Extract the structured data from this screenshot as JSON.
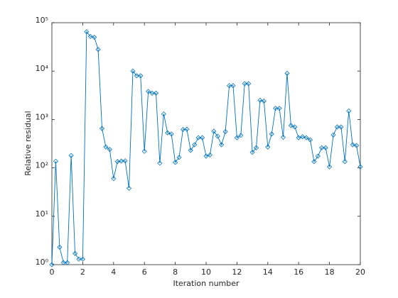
{
  "chart_data": {
    "type": "line",
    "xlabel": "Iteration number",
    "ylabel": "Relative residual",
    "x": [
      0,
      0.25,
      0.5,
      0.75,
      1,
      1.25,
      1.5,
      1.75,
      2,
      2.25,
      2.5,
      2.75,
      3,
      3.25,
      3.5,
      3.75,
      4,
      4.25,
      4.5,
      4.75,
      5,
      5.25,
      5.5,
      5.75,
      6,
      6.25,
      6.5,
      6.75,
      7,
      7.25,
      7.5,
      7.75,
      8,
      8.25,
      8.5,
      8.75,
      9,
      9.25,
      9.5,
      9.75,
      10,
      10.25,
      10.5,
      10.75,
      11,
      11.25,
      11.5,
      11.75,
      12,
      12.25,
      12.5,
      12.75,
      13,
      13.25,
      13.5,
      13.75,
      14,
      14.25,
      14.5,
      14.75,
      15,
      15.25,
      15.5,
      15.75,
      16,
      16.25,
      16.5,
      16.75,
      17,
      17.25,
      17.5,
      17.75,
      18,
      18.25,
      18.5,
      18.75,
      19,
      19.25,
      19.5,
      19.75,
      20
    ],
    "series": [
      {
        "color": "#0072bd",
        "marker": "diamond",
        "values": [
          1.0,
          137,
          2.3,
          1.1,
          1.1,
          180,
          1.7,
          1.3,
          1.3,
          65000,
          52000,
          50000,
          28000,
          650,
          270,
          240,
          60,
          135,
          138,
          140,
          38,
          10000,
          8000,
          8000,
          220,
          3800,
          3500,
          3500,
          125,
          1300,
          530,
          500,
          130,
          165,
          620,
          630,
          230,
          300,
          420,
          420,
          175,
          185,
          570,
          450,
          300,
          560,
          5000,
          5000,
          420,
          470,
          5500,
          5500,
          210,
          260,
          2500,
          2400,
          270,
          500,
          1700,
          1700,
          430,
          9000,
          750,
          700,
          420,
          440,
          420,
          380,
          135,
          175,
          260,
          260,
          105,
          480,
          700,
          700,
          135,
          1500,
          300,
          290,
          105
        ]
      }
    ],
    "xlim": [
      0,
      20
    ],
    "xticks": [
      0,
      2,
      4,
      6,
      8,
      10,
      12,
      14,
      16,
      18,
      20
    ],
    "ylim": [
      1,
      100000
    ],
    "yscale": "log",
    "yticks": [
      {
        "value": 1,
        "label": "10⁰"
      },
      {
        "value": 10,
        "label": "10¹"
      },
      {
        "value": 100,
        "label": "10²"
      },
      {
        "value": 1000,
        "label": "10³"
      },
      {
        "value": 10000,
        "label": "10⁴"
      },
      {
        "value": 100000,
        "label": "10⁵"
      }
    ],
    "grid": false
  }
}
